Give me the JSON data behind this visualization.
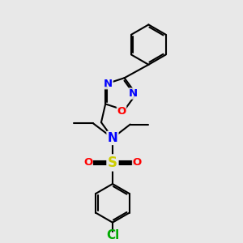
{
  "background_color": "#e8e8e8",
  "atoms": {
    "N": {
      "color": "#0000FF",
      "fontsize": 9.5
    },
    "O": {
      "color": "#FF0000",
      "fontsize": 9.5
    },
    "S": {
      "color": "#CCCC00",
      "fontsize": 11
    },
    "Cl": {
      "color": "#00AA00",
      "fontsize": 9
    }
  },
  "line_color": "#000000",
  "line_width": 1.5
}
